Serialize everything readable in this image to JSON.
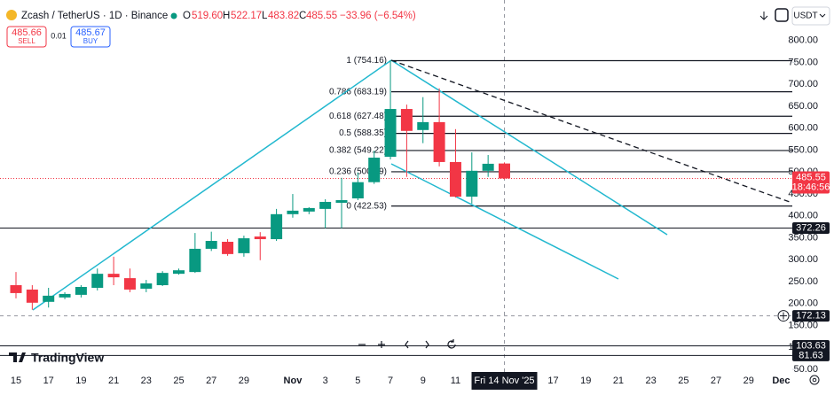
{
  "header": {
    "symbol": "Zcash / TetherUS · 1D · Binance",
    "o_label": "O",
    "o": "519.60",
    "h_label": "H",
    "h": "522.17",
    "l_label": "L",
    "l": "483.82",
    "c_label": "C",
    "c": "485.55",
    "change": "−33.96 (−6.54%)"
  },
  "trade": {
    "sell_price": "485.66",
    "sell": "SELL",
    "spread": "0.01",
    "buy_price": "485.67",
    "buy": "BUY"
  },
  "currency": "USDT",
  "logo": "TradingView",
  "chart_data": {
    "type": "candlestick",
    "categories": [
      "15",
      null,
      "17",
      null,
      "19",
      null,
      "21",
      null,
      "23",
      null,
      "25",
      null,
      "27",
      null,
      "29",
      null,
      null,
      "Nov",
      null,
      "3",
      null,
      "5",
      null,
      "7",
      null,
      "9",
      null,
      "11",
      null,
      null,
      "Fri 14 Nov '25",
      null,
      null,
      "17",
      null,
      "19",
      null,
      "21",
      null,
      "23",
      null,
      "25",
      null,
      "27",
      null,
      "29",
      null,
      "Dec"
    ],
    "open": [
      242,
      232,
      204,
      214,
      220,
      236,
      268,
      258,
      234,
      242,
      268,
      272,
      325,
      341,
      315,
      353,
      347,
      404,
      410,
      416,
      430,
      440,
      477,
      535,
      644,
      596,
      614,
      523,
      444,
      503,
      519.6,
      null,
      null,
      null,
      null,
      null,
      null,
      null,
      null,
      null,
      null,
      null,
      null,
      null,
      null,
      null,
      null,
      null
    ],
    "high": [
      272,
      242,
      236,
      226,
      242,
      280,
      307,
      280,
      254,
      274,
      280,
      361,
      364,
      347,
      355,
      363,
      416,
      450,
      420,
      438,
      487,
      499,
      549,
      755,
      654,
      671,
      691,
      598,
      545,
      539,
      522.17,
      null,
      null,
      null,
      null,
      null,
      null,
      null,
      null,
      null,
      null,
      null,
      null,
      null,
      null,
      null,
      null,
      null
    ],
    "low": [
      212,
      186,
      191,
      210,
      214,
      230,
      242,
      226,
      226,
      240,
      266,
      270,
      320,
      309,
      307,
      299,
      343,
      396,
      404,
      372,
      372,
      436,
      473,
      529,
      489,
      566,
      513,
      442,
      428,
      489,
      483.82,
      null,
      null,
      null,
      null,
      null,
      null,
      null,
      null,
      null,
      null,
      null,
      null,
      null,
      null,
      null,
      null,
      null
    ],
    "close": [
      224,
      202,
      218,
      222,
      238,
      268,
      260,
      232,
      246,
      270,
      276,
      325,
      343,
      313,
      349,
      347,
      404,
      412,
      418,
      432,
      436,
      477,
      533,
      644,
      594,
      614,
      523,
      444,
      503,
      519,
      485.55,
      null,
      null,
      null,
      null,
      null,
      null,
      null,
      null,
      null,
      null,
      null,
      null,
      null,
      null,
      null,
      null,
      null
    ],
    "up_color": "#089981",
    "down_color": "#f23645",
    "ylim": [
      44,
      832
    ],
    "yticks": [
      {
        "value": 800,
        "label": "800.00"
      },
      {
        "value": 750,
        "label": "750.00"
      },
      {
        "value": 700,
        "label": "700.00"
      },
      {
        "value": 650,
        "label": "650.00"
      },
      {
        "value": 600,
        "label": "600.00"
      },
      {
        "value": 550,
        "label": "550.00"
      },
      {
        "value": 500,
        "label": "500.00"
      },
      {
        "value": 450,
        "label": "450.00"
      },
      {
        "value": 400,
        "label": "400.00"
      },
      {
        "value": 350,
        "label": "350.00"
      },
      {
        "value": 300,
        "label": "300.00"
      },
      {
        "value": 250,
        "label": "250.00"
      },
      {
        "value": 200,
        "label": "200.00"
      },
      {
        "value": 150,
        "label": "150.00"
      },
      {
        "value": 100,
        "label": "100.00"
      },
      {
        "value": 50,
        "label": "50.00"
      }
    ],
    "fib_levels": [
      {
        "label": "1 (754.16)",
        "value": 754.16
      },
      {
        "label": "0.786 (683.19)",
        "value": 683.19
      },
      {
        "label": "0.618 (627.48)",
        "value": 627.48
      },
      {
        "label": "0.5 (588.35)",
        "value": 588.35
      },
      {
        "label": "0.382 (549.22)",
        "value": 549.22
      },
      {
        "label": "0.236 (500.79)",
        "value": 500.79
      },
      {
        "label": "0 (422.53)",
        "value": 422.53
      }
    ],
    "price_lines": [
      372.26,
      103.63,
      81.63
    ],
    "crosshair_price": 172.13,
    "last_price": {
      "value": 485.55,
      "countdown": "18:46:56"
    }
  }
}
